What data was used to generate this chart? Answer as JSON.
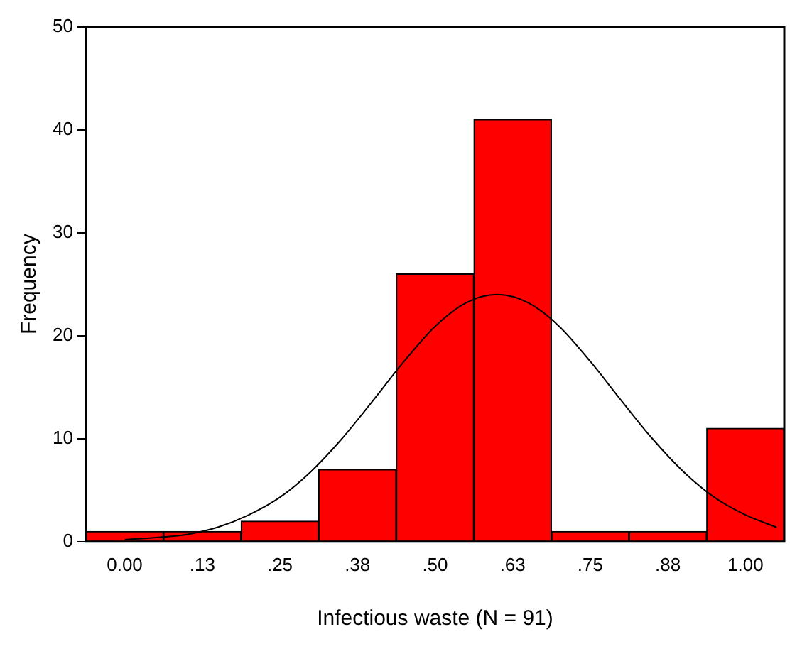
{
  "chart_data": {
    "type": "histogram",
    "xlabel": "Infectious waste (N = 91)",
    "ylabel": "Frequency",
    "bins": [
      -0.0625,
      0.0625,
      0.1875,
      0.3125,
      0.4375,
      0.5625,
      0.6875,
      0.8125,
      0.9375,
      1.0625
    ],
    "series": [
      {
        "values": [
          1,
          1,
          2,
          7,
          26,
          41,
          1,
          1,
          11
        ],
        "color": "#ff0000"
      },
      {
        "type": "line",
        "color": "#000000",
        "x": [
          0,
          0.05,
          0.1,
          0.15,
          0.2,
          0.25,
          0.3,
          0.35,
          0.4,
          0.45,
          0.5,
          0.55,
          0.6,
          0.65,
          0.7,
          0.75,
          0.8,
          0.85,
          0.9,
          0.95,
          1,
          1.05
        ],
        "values": [
          0.2,
          0.4,
          0.7,
          1.4,
          2.6,
          4.3,
          6.8,
          10,
          13.7,
          17.5,
          20.9,
          23.2,
          24,
          23.2,
          20.9,
          17.5,
          13.7,
          10,
          6.8,
          4.3,
          2.6,
          1.4
        ]
      }
    ],
    "xlim": [
      -0.0625,
      1.0625
    ],
    "xticks": [
      {
        "value": 0,
        "label": "0.00"
      },
      {
        "value": 0.125,
        "label": ".13"
      },
      {
        "value": 0.25,
        "label": ".25"
      },
      {
        "value": 0.375,
        "label": ".38"
      },
      {
        "value": 0.5,
        "label": ".50"
      },
      {
        "value": 0.625,
        "label": ".63"
      },
      {
        "value": 0.75,
        "label": ".75"
      },
      {
        "value": 0.875,
        "label": ".88"
      },
      {
        "value": 1,
        "label": "1.00"
      }
    ],
    "ylim": [
      0,
      50
    ],
    "yticks": [
      0,
      10,
      20,
      30,
      40,
      50
    ],
    "grid": false,
    "legend": false
  }
}
